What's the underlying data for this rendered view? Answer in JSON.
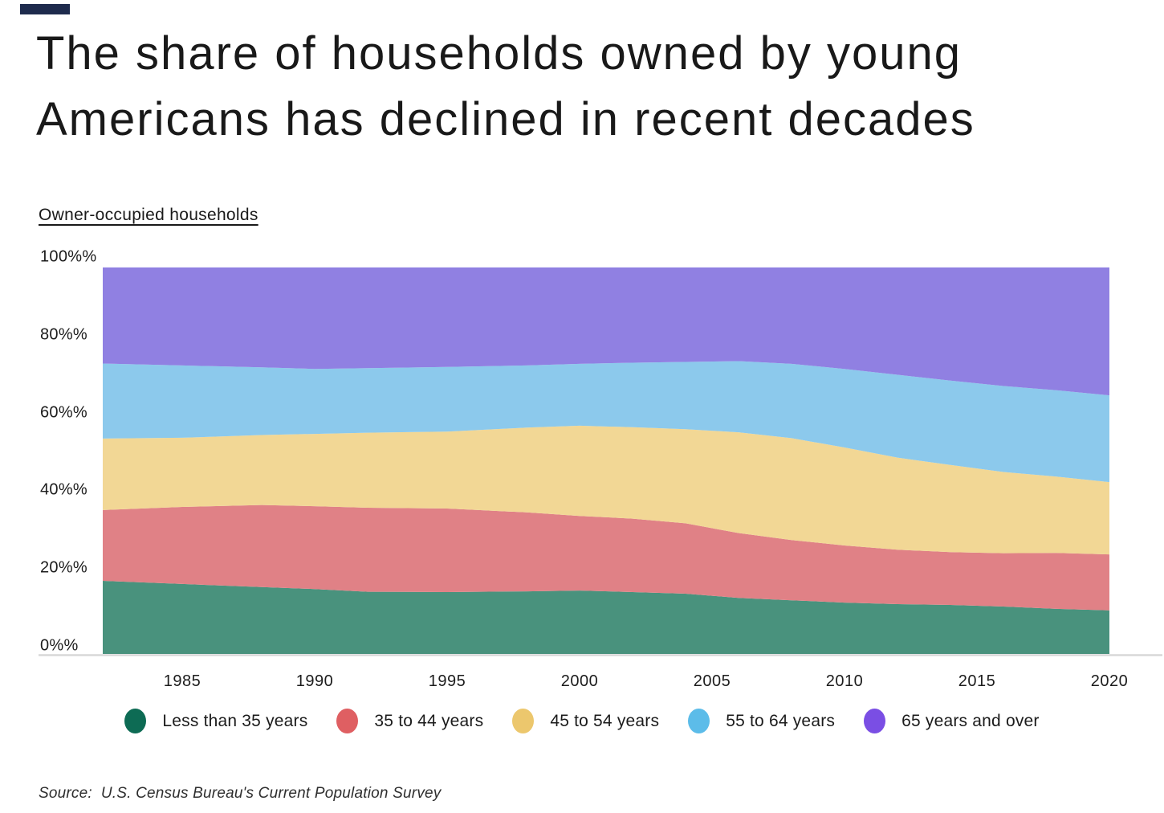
{
  "brand": {
    "accent_color": "#1e2b4d"
  },
  "title": {
    "line1": "The share of households owned by young",
    "line2": "Americans has declined in recent decades"
  },
  "chart": {
    "subtitle": "Owner-occupied households"
  },
  "chart_data": {
    "type": "area",
    "stacked": true,
    "title": "Owner-occupied households",
    "xlabel": "",
    "ylabel": "",
    "grid": false,
    "legend_position": "bottom",
    "xlim": [
      1982,
      2020
    ],
    "ylim": [
      0,
      100
    ],
    "x": [
      1982,
      1985,
      1988,
      1990,
      1992,
      1995,
      1998,
      2000,
      2002,
      2004,
      2006,
      2008,
      2010,
      2012,
      2014,
      2016,
      2018,
      2020
    ],
    "y_ticks": [
      {
        "label": "0%%",
        "value": 0
      },
      {
        "label": "20%%",
        "value": 20
      },
      {
        "label": "40%%",
        "value": 40
      },
      {
        "label": "60%%",
        "value": 60
      },
      {
        "label": "80%%",
        "value": 80
      },
      {
        "label": "100%%",
        "value": 100
      }
    ],
    "x_ticks": [
      {
        "label": "1985",
        "value": 1985
      },
      {
        "label": "1990",
        "value": 1990
      },
      {
        "label": "1995",
        "value": 1995
      },
      {
        "label": "2000",
        "value": 2000
      },
      {
        "label": "2005",
        "value": 2005
      },
      {
        "label": "2010",
        "value": 2010
      },
      {
        "label": "2015",
        "value": 2015
      },
      {
        "label": "2020",
        "value": 2020
      }
    ],
    "series": [
      {
        "id": "less-than-35-years",
        "name": "Less than 35 years",
        "area_color": "#49927d",
        "legend_color": "#0d6b54",
        "values": [
          18.8,
          18.0,
          17.2,
          16.7,
          16.0,
          15.9,
          16.1,
          16.3,
          15.9,
          15.5,
          14.4,
          13.8,
          13.2,
          12.8,
          12.6,
          12.2,
          11.6,
          11.2
        ]
      },
      {
        "id": "35-to-44-years",
        "name": "35 to 44 years",
        "area_color": "#e08186",
        "legend_color": "#df5f62",
        "values": [
          18.2,
          19.8,
          21.1,
          21.3,
          21.6,
          21.5,
          20.3,
          19.2,
          18.9,
          18.1,
          16.7,
          15.5,
          14.7,
          14.0,
          13.6,
          13.7,
          14.4,
          14.4
        ]
      },
      {
        "id": "45-to-54-years",
        "name": "45 to 54 years",
        "area_color": "#f2d795",
        "legend_color": "#ecc76d",
        "values": [
          18.4,
          17.8,
          18.0,
          18.6,
          19.3,
          19.8,
          21.8,
          23.2,
          23.5,
          24.2,
          25.9,
          26.2,
          25.2,
          23.7,
          22.4,
          20.9,
          19.6,
          18.6
        ]
      },
      {
        "id": "55-to-64-years",
        "name": "55 to 64 years",
        "area_color": "#8cc9ec",
        "legend_color": "#5cbce9",
        "values": [
          19.3,
          18.6,
          17.4,
          16.7,
          16.6,
          16.6,
          16.0,
          15.9,
          16.6,
          17.3,
          18.3,
          19.1,
          20.2,
          21.3,
          21.7,
          22.1,
          22.2,
          22.3
        ]
      },
      {
        "id": "65-years-and-over",
        "name": "65 years and over",
        "area_color": "#9080e2",
        "legend_color": "#7a4ee4",
        "values": [
          24.7,
          25.2,
          25.7,
          26.1,
          25.9,
          25.6,
          25.2,
          24.8,
          24.5,
          24.3,
          24.1,
          24.8,
          26.1,
          27.6,
          29.1,
          30.5,
          31.6,
          32.9
        ]
      }
    ],
    "axis_line_color": "#d8d8d8"
  },
  "source": {
    "text": "Source:  U.S. Census Bureau's Current Population Survey"
  }
}
